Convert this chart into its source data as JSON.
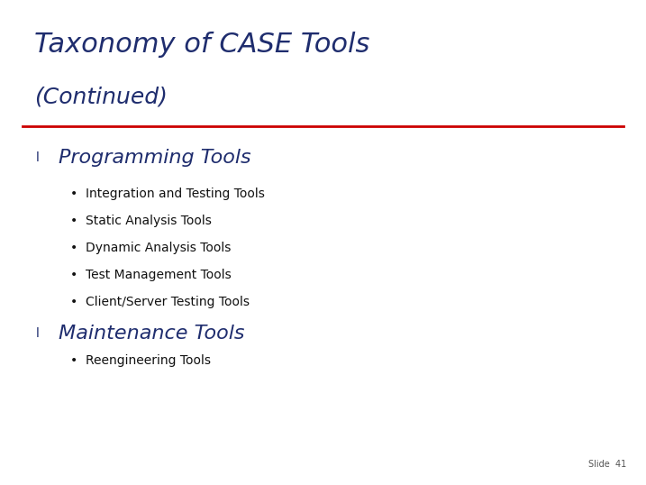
{
  "title_line1": "Taxonomy of CASE Tools",
  "title_line2": "(Continued)",
  "title_color": "#1F2D6E",
  "separator_color": "#CC0000",
  "background_color": "#FFFFFF",
  "l_marker_color": "#1F2D6E",
  "section1_heading": "Programming Tools",
  "section1_heading_color": "#1F2D6E",
  "section1_bullets": [
    "Integration and Testing Tools",
    "Static Analysis Tools",
    "Dynamic Analysis Tools",
    "Test Management Tools",
    "Client/Server Testing Tools"
  ],
  "section2_heading": "Maintenance Tools",
  "section2_heading_color": "#1F2D6E",
  "section2_bullets": [
    "Reengineering Tools"
  ],
  "bullet_color": "#111111",
  "slide_number": "Slide  41",
  "slide_number_color": "#555555",
  "title1_fontsize": 22,
  "title2_fontsize": 18,
  "section_heading_fontsize": 16,
  "bullet_fontsize": 10,
  "slide_num_fontsize": 7
}
